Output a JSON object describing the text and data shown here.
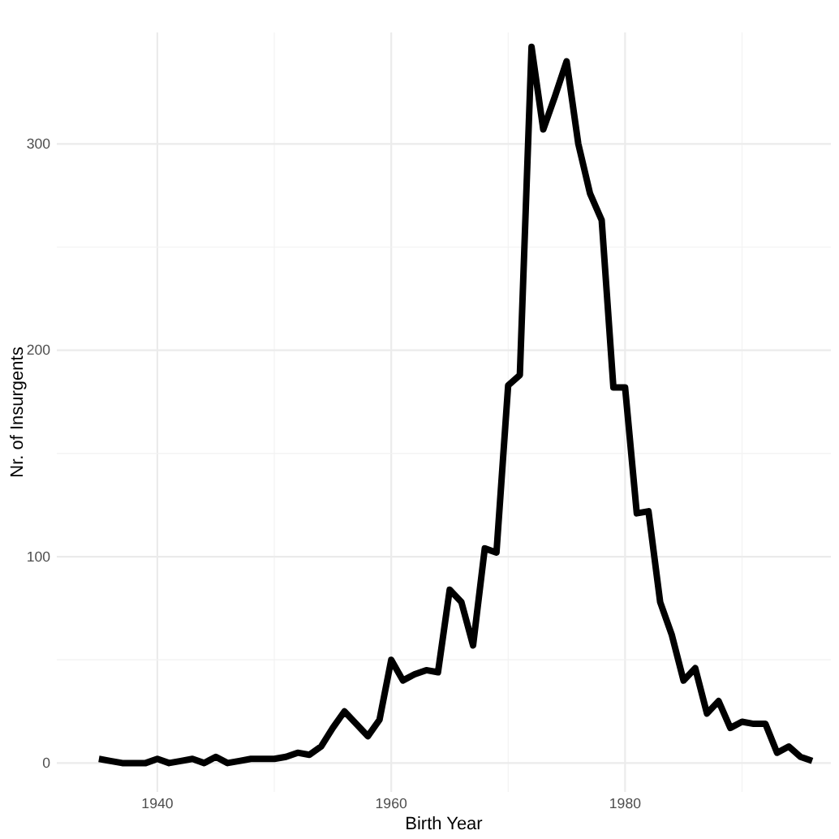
{
  "chart_data": {
    "type": "line",
    "xlabel": "Birth Year",
    "ylabel": "Nr. of Insurgents",
    "x": [
      1935,
      1936,
      1937,
      1938,
      1939,
      1940,
      1941,
      1942,
      1943,
      1944,
      1945,
      1946,
      1947,
      1948,
      1949,
      1950,
      1951,
      1952,
      1953,
      1954,
      1955,
      1956,
      1957,
      1958,
      1959,
      1960,
      1961,
      1962,
      1963,
      1964,
      1965,
      1966,
      1967,
      1968,
      1969,
      1970,
      1971,
      1972,
      1973,
      1974,
      1975,
      1976,
      1977,
      1978,
      1979,
      1980,
      1981,
      1982,
      1983,
      1984,
      1985,
      1986,
      1987,
      1988,
      1989,
      1990,
      1991,
      1992,
      1993,
      1994,
      1995,
      1996
    ],
    "series": [
      {
        "color": "#000000",
        "values": [
          2,
          1,
          0,
          0,
          0,
          2,
          0,
          1,
          2,
          0,
          3,
          0,
          1,
          2,
          2,
          2,
          3,
          5,
          4,
          8,
          17,
          25,
          19,
          13,
          21,
          50,
          40,
          43,
          45,
          44,
          84,
          78,
          57,
          104,
          102,
          183,
          188,
          347,
          307,
          323,
          340,
          300,
          276,
          263,
          182,
          182,
          121,
          122,
          78,
          62,
          40,
          46,
          24,
          30,
          17,
          20,
          19,
          19,
          5,
          8,
          3,
          1
        ]
      }
    ],
    "xlim": [
      1931.4,
      1997.6
    ],
    "ylim": [
      -14,
      354
    ],
    "xticks": [
      {
        "value": 1940,
        "label": "1940"
      },
      {
        "value": 1950,
        "label": null
      },
      {
        "value": 1960,
        "label": "1960"
      },
      {
        "value": 1970,
        "label": null
      },
      {
        "value": 1980,
        "label": "1980"
      },
      {
        "value": 1990,
        "label": null
      }
    ],
    "yticks": [
      {
        "value": 0,
        "label": "0"
      },
      {
        "value": 50,
        "label": null
      },
      {
        "value": 100,
        "label": "100"
      },
      {
        "value": 150,
        "label": null
      },
      {
        "value": 200,
        "label": "200"
      },
      {
        "value": 250,
        "label": null
      },
      {
        "value": 300,
        "label": "300"
      }
    ],
    "grid": true,
    "marker": "none",
    "line_style": "solid"
  }
}
